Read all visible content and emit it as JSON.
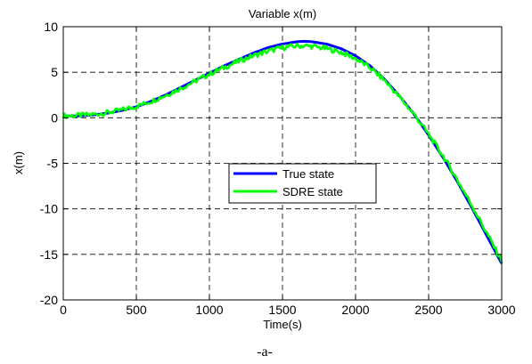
{
  "chart_data": {
    "type": "line",
    "title": "Variable x(m)",
    "xlabel": "Time(s)",
    "ylabel": "x(m)",
    "xlim": [
      0,
      3000
    ],
    "ylim": [
      -20,
      10
    ],
    "xticks": [
      0,
      500,
      1000,
      1500,
      2000,
      2500,
      3000
    ],
    "yticks": [
      10,
      5,
      0,
      -5,
      -10,
      -15,
      -20
    ],
    "xtick_labels": [
      "0",
      "500",
      "1000",
      "1500",
      "2000",
      "2500",
      "3000"
    ],
    "ytick_labels": [
      "10",
      "5",
      "0",
      "-5",
      "-10",
      "-15",
      "-20"
    ],
    "grid": true,
    "legend_position": "center",
    "series": [
      {
        "name": "True state",
        "color": "#0000ff",
        "x": [
          0,
          100,
          200,
          300,
          400,
          500,
          600,
          700,
          800,
          900,
          1000,
          1100,
          1200,
          1300,
          1400,
          1500,
          1600,
          1650,
          1700,
          1800,
          1900,
          2000,
          2100,
          2200,
          2300,
          2400,
          2500,
          2600,
          2700,
          2800,
          2900,
          3000
        ],
        "y": [
          0.2,
          0.2,
          0.3,
          0.5,
          0.8,
          1.2,
          1.8,
          2.5,
          3.3,
          4.1,
          4.9,
          5.7,
          6.4,
          7.1,
          7.7,
          8.1,
          8.35,
          8.4,
          8.35,
          8.1,
          7.6,
          6.8,
          5.7,
          4.2,
          2.4,
          0.4,
          -1.9,
          -4.4,
          -7.1,
          -10.0,
          -13.0,
          -16.0
        ]
      },
      {
        "name": "SDRE state",
        "color": "#00ff00",
        "x": [
          0,
          100,
          200,
          300,
          400,
          500,
          600,
          700,
          800,
          900,
          1000,
          1100,
          1200,
          1300,
          1400,
          1500,
          1600,
          1650,
          1700,
          1800,
          1900,
          2000,
          2100,
          2200,
          2300,
          2400,
          2500,
          2600,
          2700,
          2800,
          2900,
          3000
        ],
        "y": [
          0.2,
          0.25,
          0.35,
          0.55,
          0.85,
          1.25,
          1.8,
          2.45,
          3.2,
          4.0,
          4.8,
          5.5,
          6.2,
          6.8,
          7.3,
          7.7,
          7.9,
          7.9,
          7.85,
          7.6,
          7.2,
          6.5,
          5.5,
          4.1,
          2.3,
          0.4,
          -1.8,
          -4.2,
          -6.9,
          -9.7,
          -12.7,
          -15.7
        ]
      }
    ]
  },
  "caption": "-a-"
}
